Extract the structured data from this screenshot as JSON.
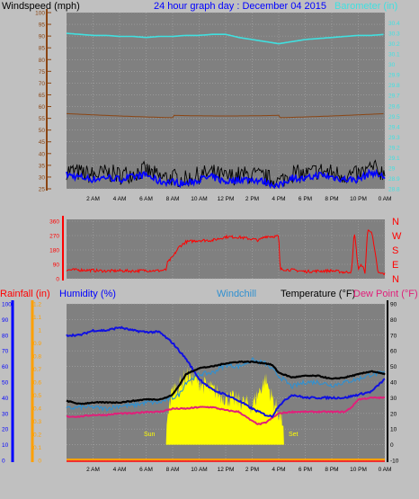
{
  "header": {
    "windspeed_label": "Windspeed (mph)",
    "graph_title": "24 hour graph day : December 04 2015",
    "barometer_label": "Barometer (in)"
  },
  "lower_header": {
    "rainfall_label": "Rainfall (in)",
    "humidity_label": "Humidity (%)",
    "windchill_label": "Windchill",
    "temperature_label": "Temperature (°F)",
    "dewpoint_label": "Dew Point (°F)"
  },
  "annotations": {
    "sunrise": "Sun",
    "sunset": "Set"
  },
  "x_ticks": [
    "2 AM",
    "4 AM",
    "6 AM",
    "8 AM",
    "10 AM",
    "12 PM",
    "2 PM",
    "4 PM",
    "6 PM",
    "8 PM",
    "10 PM",
    "0 AM"
  ],
  "colors": {
    "windspeed": "#000000",
    "windspeed_avg": "#0000ff",
    "barometer": "#40e0e0",
    "temperature": "#000000",
    "dewpoint": "#e0207a",
    "humidity": "#1010e0",
    "windchill": "#3090d0",
    "wind_direction": "#ff0000",
    "rain": "#ffa000",
    "solar": "#ffff00",
    "background": "#808080"
  },
  "chart_data": [
    {
      "type": "line",
      "title": "24 hour graph day : December 04 2015",
      "ylabel": "Windspeed (mph)",
      "y2label": "Barometer (in)",
      "x_range": [
        0,
        24
      ],
      "ylim": [
        25,
        100
      ],
      "y_ticks": [
        25,
        30,
        35,
        40,
        45,
        50,
        55,
        60,
        65,
        70,
        75,
        80,
        85,
        90,
        95,
        100
      ],
      "y2lim": [
        28.8,
        30.5
      ],
      "y2_ticks": [
        "28.8",
        "28.9",
        "29",
        "29.1",
        "29.2",
        "29.3",
        "29.4",
        "29.5",
        "29.6",
        "29.7",
        "29.8",
        "29.9",
        "30",
        "30.1",
        "30.2",
        "30.3",
        "30.4"
      ],
      "grid": true,
      "series": [
        {
          "name": "Barometer (in)",
          "axis": "y2",
          "x": [
            0,
            1,
            2,
            3,
            4,
            5,
            6,
            7,
            8,
            9,
            10,
            11,
            12,
            13,
            14,
            15,
            16,
            17,
            18,
            19,
            20,
            21,
            22,
            23,
            24
          ],
          "values": [
            30.3,
            30.29,
            30.28,
            30.28,
            30.27,
            30.27,
            30.26,
            30.27,
            30.27,
            30.28,
            30.28,
            30.29,
            30.29,
            30.26,
            30.24,
            30.22,
            30.2,
            30.22,
            30.24,
            30.25,
            30.26,
            30.27,
            30.28,
            30.28,
            30.29
          ]
        },
        {
          "name": "Windspeed (mph)",
          "axis": "y",
          "x": [
            0,
            1,
            2,
            3,
            4,
            5,
            6,
            7,
            8,
            9,
            10,
            11,
            12,
            13,
            14,
            15,
            16,
            17,
            18,
            19,
            20,
            21,
            22,
            23,
            24
          ],
          "values": [
            32,
            31,
            30,
            31,
            30,
            31,
            32,
            29,
            29,
            28,
            30,
            31,
            29,
            30,
            30,
            29,
            27,
            31,
            30,
            32,
            31,
            30,
            30,
            33,
            31
          ]
        }
      ]
    },
    {
      "type": "line",
      "ylabel": "Wind Direction",
      "x_range": [
        0,
        24
      ],
      "ylim": [
        0,
        360
      ],
      "y_ticks": [
        0,
        90,
        180,
        270,
        360
      ],
      "y2_ticks": [
        "N",
        "E",
        "S",
        "W",
        "N"
      ],
      "grid": true,
      "series": [
        {
          "name": "Wind Direction",
          "x": [
            0,
            1,
            2,
            3,
            4,
            5,
            6,
            7,
            7.5,
            7.6,
            8,
            8.5,
            9,
            10,
            11,
            12,
            13,
            14,
            14.5,
            15,
            15.5,
            16,
            16.1,
            17,
            18,
            19,
            20,
            21,
            21.5,
            21.7,
            22,
            22.3,
            22.5,
            22.7,
            23,
            23.5,
            24
          ],
          "values": [
            55,
            55,
            52,
            48,
            50,
            48,
            52,
            50,
            55,
            100,
            135,
            200,
            230,
            240,
            240,
            262,
            260,
            248,
            240,
            265,
            265,
            265,
            60,
            55,
            45,
            48,
            50,
            40,
            45,
            300,
            60,
            90,
            30,
            300,
            300,
            35,
            30
          ]
        }
      ]
    },
    {
      "type": "line",
      "ylabel": "Temperature (°F)",
      "x_range": [
        0,
        24
      ],
      "ylim": [
        -10,
        90
      ],
      "y_ticks": [
        -10,
        0,
        10,
        20,
        30,
        40,
        50,
        60,
        70,
        80,
        90
      ],
      "y_left_rain_ticks": [
        "0",
        "0.1",
        "0.2",
        "0.3",
        "0.4",
        "0.5",
        "0.6",
        "0.7",
        "0.8",
        "0.9",
        "1",
        "1.1",
        "1.2"
      ],
      "y_left_humidity_ticks": [
        0,
        10,
        20,
        30,
        40,
        50,
        60,
        70,
        80,
        90,
        100
      ],
      "grid": true,
      "series": [
        {
          "name": "Temperature (°F)",
          "x": [
            0,
            1,
            2,
            3,
            4,
            5,
            6,
            7,
            7.5,
            8,
            8.5,
            9,
            10,
            11,
            12,
            13,
            14,
            15,
            15.5,
            16,
            17,
            18,
            19,
            20,
            21,
            22,
            23,
            24
          ],
          "values": [
            28,
            26,
            27,
            27,
            27,
            28,
            29,
            29,
            30,
            32,
            38,
            45,
            49,
            50,
            52,
            53,
            53,
            52,
            51,
            46,
            43,
            44,
            44,
            42,
            43,
            45,
            47,
            45
          ]
        },
        {
          "name": "Dew Point (°F)",
          "x": [
            0,
            1,
            2,
            3,
            4,
            5,
            6,
            7,
            8,
            9,
            10,
            11,
            12,
            13,
            14,
            14.5,
            15,
            15.5,
            16,
            17,
            18,
            19,
            20,
            21,
            21.5,
            22,
            23,
            24
          ],
          "values": [
            18,
            18,
            19,
            19,
            20,
            20,
            21,
            21,
            23,
            23,
            24,
            24,
            22,
            21,
            15,
            13,
            14,
            17,
            20,
            21,
            21,
            21,
            21,
            21,
            24,
            29,
            30,
            30
          ]
        },
        {
          "name": "Humidity (%)",
          "x": [
            0,
            1,
            2,
            3,
            4,
            5,
            6,
            7,
            8,
            9,
            10,
            11,
            12,
            13,
            14,
            15,
            15.5,
            16,
            17,
            18,
            19,
            20,
            21,
            22,
            23,
            24
          ],
          "values": [
            80,
            80,
            83,
            83,
            85,
            83,
            82,
            82,
            75,
            65,
            52,
            45,
            42,
            38,
            33,
            29,
            28,
            35,
            42,
            40,
            40,
            40,
            40,
            42,
            44,
            52
          ]
        },
        {
          "name": "Windchill",
          "x": [
            0,
            1,
            2,
            3,
            4,
            5,
            6,
            7,
            8,
            8.5,
            9,
            10,
            11,
            12,
            13,
            14,
            15,
            16,
            17,
            18,
            19,
            20,
            21,
            22,
            23,
            24
          ],
          "values": [
            23,
            24,
            24,
            23,
            25,
            25,
            27,
            27,
            30,
            32,
            40,
            45,
            46,
            51,
            50,
            54,
            52,
            44,
            37,
            40,
            40,
            38,
            40,
            42,
            45,
            46
          ]
        },
        {
          "name": "Solar",
          "x": [
            7.5,
            7.6,
            8,
            8.5,
            9,
            10,
            11,
            12,
            13,
            14,
            15,
            15.5,
            16,
            16.3,
            16.4
          ],
          "values": [
            0,
            20,
            35,
            38,
            45,
            40,
            35,
            30,
            28,
            25,
            42,
            30,
            20,
            15,
            0
          ]
        },
        {
          "name": "Rainfall (in)",
          "x": [
            0,
            24
          ],
          "values": [
            0,
            0
          ]
        }
      ]
    }
  ]
}
